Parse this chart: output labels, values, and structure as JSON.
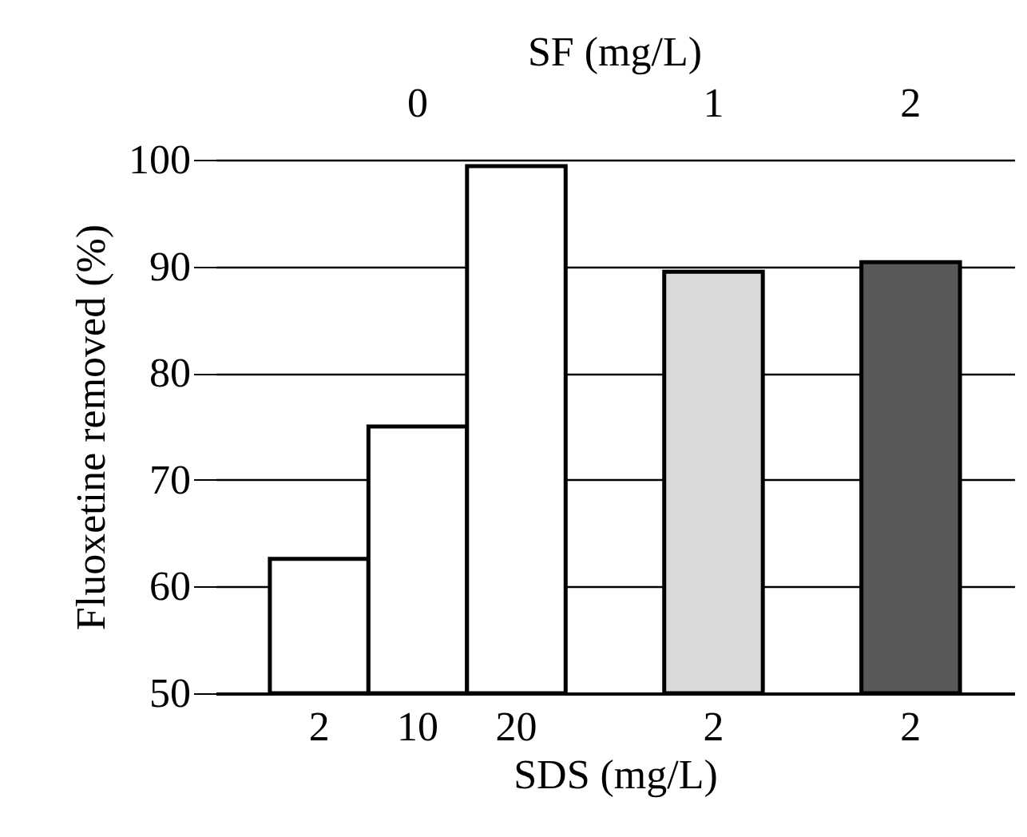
{
  "chart_data": {
    "type": "bar",
    "x2label": "SF (mg/L)",
    "xlabel": "SDS (mg/L)",
    "ylabel": "Fluoxetine removed (%)",
    "categories": [
      "2",
      "10",
      "20",
      null,
      "2",
      null,
      "2"
    ],
    "values": [
      62.6,
      75.0,
      99.4,
      null,
      89.5,
      null,
      90.4
    ],
    "colors": [
      "#ffffff",
      "#ffffff",
      "#ffffff",
      null,
      "#d9d9d9",
      null,
      "#595959"
    ],
    "annotations": [
      "0",
      "1",
      "2"
    ],
    "ylim": [
      50,
      100
    ],
    "yticks": [
      50,
      60,
      70,
      80,
      90,
      100
    ],
    "grid": "y"
  }
}
